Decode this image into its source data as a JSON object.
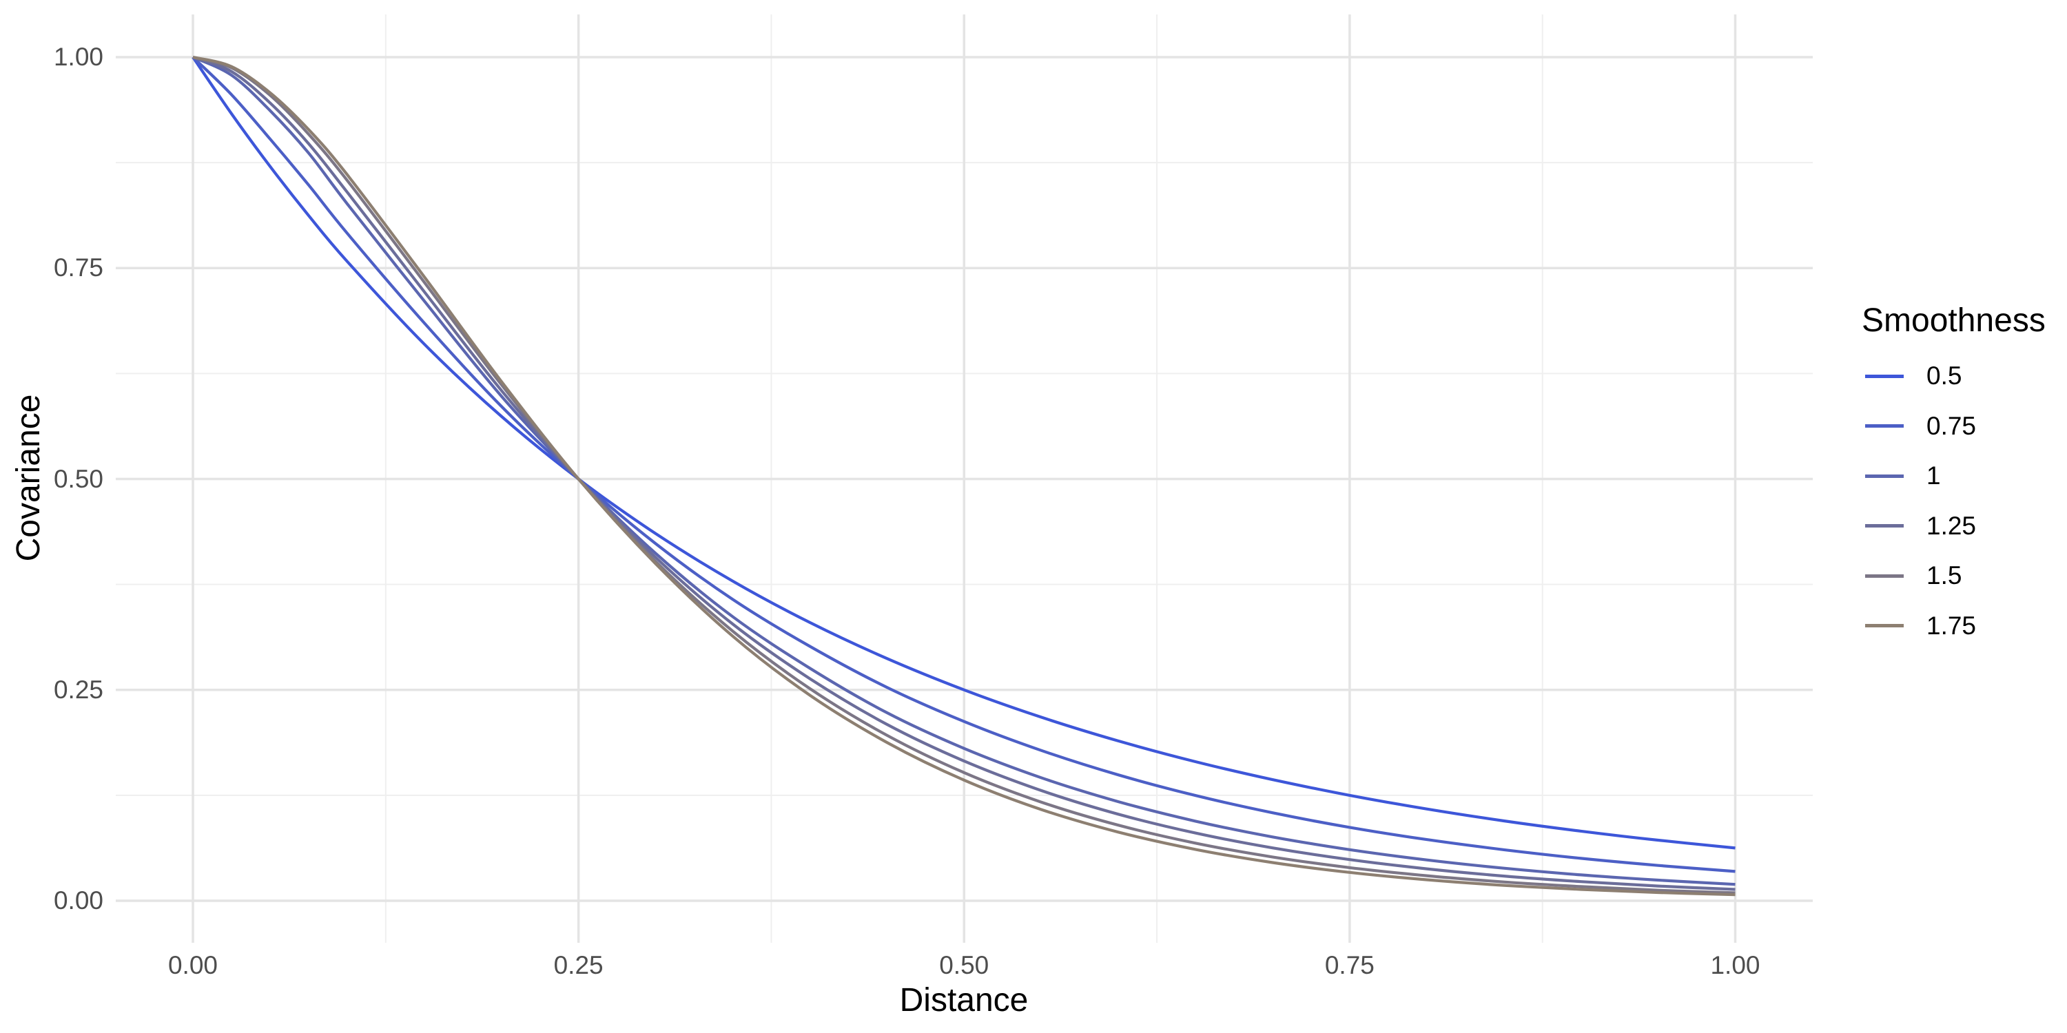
{
  "figure": {
    "background": "#FFFFFF",
    "title_text_color": "#000000",
    "tick_text_color": "#4D4D4D",
    "grid_major_color": "#E4E4E4",
    "grid_minor_color": "#EFEFEF"
  },
  "chart_data": {
    "type": "line",
    "title": "",
    "xlabel": "Distance",
    "ylabel": "Covariance",
    "xlim": [
      0,
      1
    ],
    "ylim": [
      0,
      1
    ],
    "x_ticks": [
      0,
      0.25,
      0.5,
      0.75,
      1
    ],
    "x_tick_labels": [
      "0.00",
      "0.25",
      "0.50",
      "0.75",
      "1.00"
    ],
    "y_ticks": [
      0,
      0.25,
      0.5,
      0.75,
      1
    ],
    "y_tick_labels": [
      "0.00",
      "0.25",
      "0.50",
      "0.75",
      "1.00"
    ],
    "grid": "major and minor gridlines, light gray, no axis lines (minimal theme)",
    "legend_position": "right",
    "description": "Matern covariance functions for different smoothness values; all curves equal 1 at distance 0 and cross at covariance 0.5 at distance 0.25",
    "x": [
      0,
      0.025,
      0.05,
      0.075,
      0.1,
      0.15,
      0.2,
      0.25,
      0.3,
      0.35,
      0.4,
      0.45,
      0.5,
      0.55,
      0.6,
      0.65,
      0.7,
      0.75,
      0.8,
      0.85,
      0.9,
      0.95,
      1
    ],
    "series": [
      {
        "name": "0.5",
        "color": "#3D56D9",
        "values": [
          1,
          0.933,
          0.8706,
          0.8123,
          0.7579,
          0.6598,
          0.5743,
          0.5,
          0.4353,
          0.3789,
          0.3299,
          0.2872,
          0.25,
          0.2176,
          0.1895,
          0.1649,
          0.1436,
          0.125,
          0.1088,
          0.0947,
          0.0825,
          0.0718,
          0.0625
        ]
      },
      {
        "name": "0.75",
        "color": "#4C5FC6",
        "values": [
          1,
          0.9556,
          0.9031,
          0.8485,
          0.7913,
          0.6849,
          0.5861,
          0.5,
          0.4234,
          0.3572,
          0.3016,
          0.253,
          0.2125,
          0.1782,
          0.1492,
          0.1248,
          0.1043,
          0.087,
          0.0726,
          0.0605,
          0.0503,
          0.0419,
          0.0348
        ]
      },
      {
        "name": "1",
        "color": "#5B66B0",
        "values": [
          1,
          0.9786,
          0.9367,
          0.8864,
          0.8262,
          0.7109,
          0.5982,
          0.5,
          0.4118,
          0.3367,
          0.2757,
          0.2229,
          0.1806,
          0.1459,
          0.1175,
          0.0944,
          0.0757,
          0.0606,
          0.0484,
          0.0386,
          0.0307,
          0.0245,
          0.0194
        ]
      },
      {
        "name": "1.25",
        "color": "#6B6D9A",
        "values": [
          1,
          0.983,
          0.9458,
          0.8975,
          0.84,
          0.722,
          0.605,
          0.5,
          0.407,
          0.328,
          0.2633,
          0.2091,
          0.1656,
          0.1307,
          0.1026,
          0.0803,
          0.0627,
          0.0488,
          0.0379,
          0.0293,
          0.0227,
          0.0175,
          0.0135
        ]
      },
      {
        "name": "1.5",
        "color": "#7C7686",
        "values": [
          1,
          0.9874,
          0.9549,
          0.9087,
          0.854,
          0.7332,
          0.6118,
          0.5,
          0.4023,
          0.3196,
          0.2515,
          0.1962,
          0.1519,
          0.117,
          0.0896,
          0.0683,
          0.0519,
          0.0393,
          0.0297,
          0.0223,
          0.0168,
          0.0125,
          0.0094
        ]
      },
      {
        "name": "1.75",
        "color": "#8D7F71",
        "values": [
          1,
          0.9888,
          0.9579,
          0.9142,
          0.8607,
          0.7396,
          0.6156,
          0.5,
          0.3996,
          0.3136,
          0.2437,
          0.1877,
          0.143,
          0.1082,
          0.0814,
          0.0609,
          0.0453,
          0.0336,
          0.0249,
          0.0183,
          0.0135,
          0.0098,
          0.0072
        ]
      }
    ]
  },
  "legend": {
    "title": "Smoothness",
    "items": [
      "0.5",
      "0.75",
      "1",
      "1.25",
      "1.5",
      "1.75"
    ]
  }
}
